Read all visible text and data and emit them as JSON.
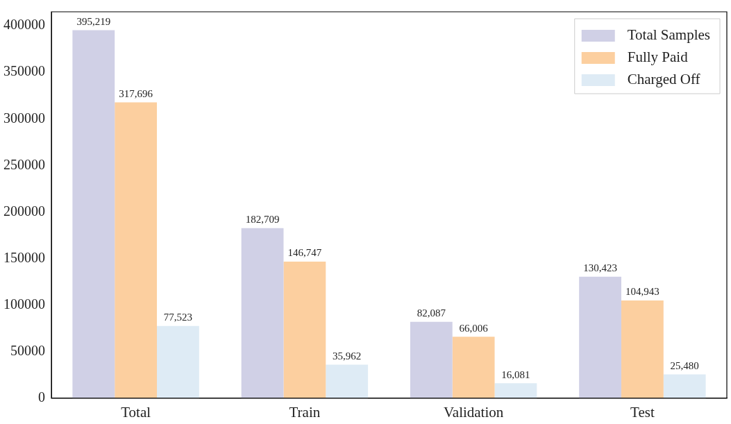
{
  "chart_data": {
    "type": "bar",
    "categories": [
      "Total",
      "Train",
      "Validation",
      "Test"
    ],
    "series": [
      {
        "name": "Total Samples",
        "color": "#d0d0e6",
        "values": [
          395219,
          182709,
          82087,
          130423
        ],
        "value_labels": [
          "395,219",
          "182,709",
          "82,087",
          "130,423"
        ]
      },
      {
        "name": "Fully Paid",
        "color": "#fccf9f",
        "values": [
          317696,
          146747,
          66006,
          104943
        ],
        "value_labels": [
          "317,696",
          "146,747",
          "66,006",
          "104,943"
        ]
      },
      {
        "name": "Charged Off",
        "color": "#deebf5",
        "values": [
          77523,
          35962,
          16081,
          25480
        ],
        "value_labels": [
          "77,523",
          "35,962",
          "16,081",
          "25,480"
        ]
      }
    ],
    "ylim": [
      0,
      415000
    ],
    "yticks": [
      0,
      50000,
      100000,
      150000,
      200000,
      250000,
      300000,
      350000,
      400000
    ],
    "grid": false,
    "legend": "top right"
  }
}
